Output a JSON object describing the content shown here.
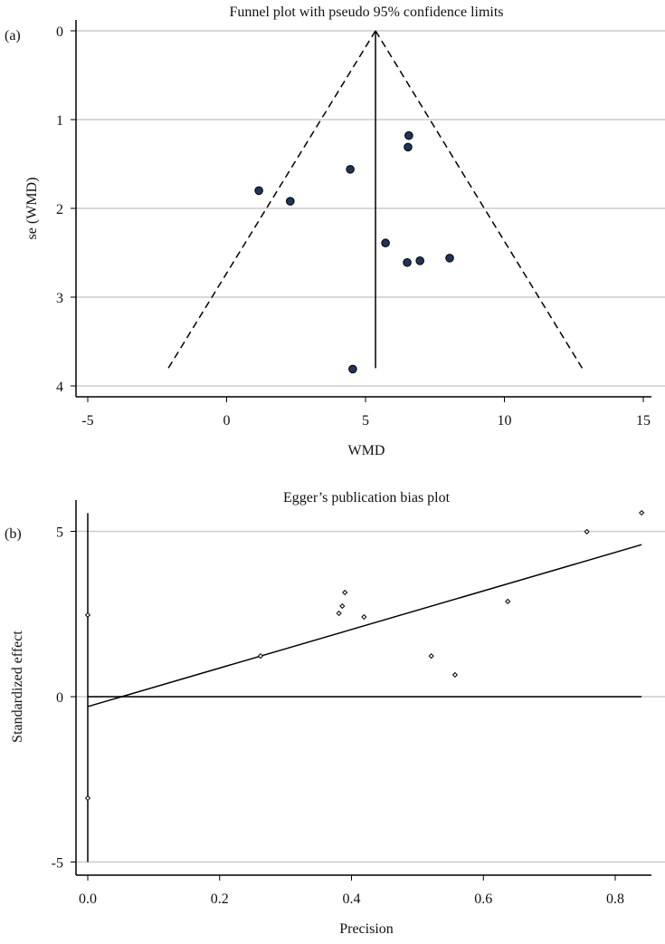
{
  "chart_data": [
    {
      "type": "scatter",
      "panel_label": "(a)",
      "title": "Funnel plot with pseudo 95% confidence limits",
      "xlabel": "WMD",
      "ylabel": "se (WMD)",
      "xlim": [
        -5,
        15
      ],
      "ylim": [
        0,
        4
      ],
      "y_reversed": true,
      "xticks": [
        "-5",
        "0",
        "5",
        "10",
        "15"
      ],
      "yticks": [
        "0",
        "1",
        "2",
        "3",
        "4"
      ],
      "grid": "horizontal",
      "pooled_estimate": 5.36,
      "funnel_bottom_se": 3.8,
      "funnel_limits_at_bottom": [
        -2.1,
        12.8
      ],
      "points": [
        {
          "x": 1.16,
          "y": 1.8
        },
        {
          "x": 2.29,
          "y": 1.92
        },
        {
          "x": 4.45,
          "y": 1.56
        },
        {
          "x": 6.56,
          "y": 1.18
        },
        {
          "x": 6.53,
          "y": 1.31
        },
        {
          "x": 5.72,
          "y": 2.39
        },
        {
          "x": 6.5,
          "y": 2.61
        },
        {
          "x": 6.96,
          "y": 2.59
        },
        {
          "x": 8.03,
          "y": 2.56
        },
        {
          "x": 4.54,
          "y": 3.81
        }
      ],
      "colors": {
        "marker": "#1f3558",
        "grid": "#cccccc"
      }
    },
    {
      "type": "scatter",
      "panel_label": "(b)",
      "title": "Egger’s publication bias plot",
      "xlabel": "Precision",
      "ylabel": "Standardized effect",
      "xlim": [
        0,
        0.84
      ],
      "ylim": [
        -5,
        5.6
      ],
      "xticks": [
        "0.0",
        "0.2",
        "0.4",
        "0.6",
        "0.8"
      ],
      "yticks": [
        "-5",
        "0",
        "5"
      ],
      "grid": "horizontal",
      "regression_line": {
        "intercept": -0.3,
        "slope": 5.83,
        "x_range": [
          0,
          0.84
        ]
      },
      "intercept_ci": [
        -5.0,
        5.55
      ],
      "points": [
        {
          "x": 0.0,
          "y": 2.47
        },
        {
          "x": 0.0,
          "y": -3.07
        },
        {
          "x": 0.262,
          "y": 1.23
        },
        {
          "x": 0.381,
          "y": 2.52
        },
        {
          "x": 0.386,
          "y": 2.74
        },
        {
          "x": 0.39,
          "y": 3.15
        },
        {
          "x": 0.419,
          "y": 2.41
        },
        {
          "x": 0.521,
          "y": 1.23
        },
        {
          "x": 0.557,
          "y": 0.66
        },
        {
          "x": 0.637,
          "y": 2.88
        },
        {
          "x": 0.757,
          "y": 4.99
        },
        {
          "x": 0.84,
          "y": 5.56
        }
      ],
      "colors": {
        "marker": "#000000",
        "grid": "#cccccc"
      }
    }
  ]
}
